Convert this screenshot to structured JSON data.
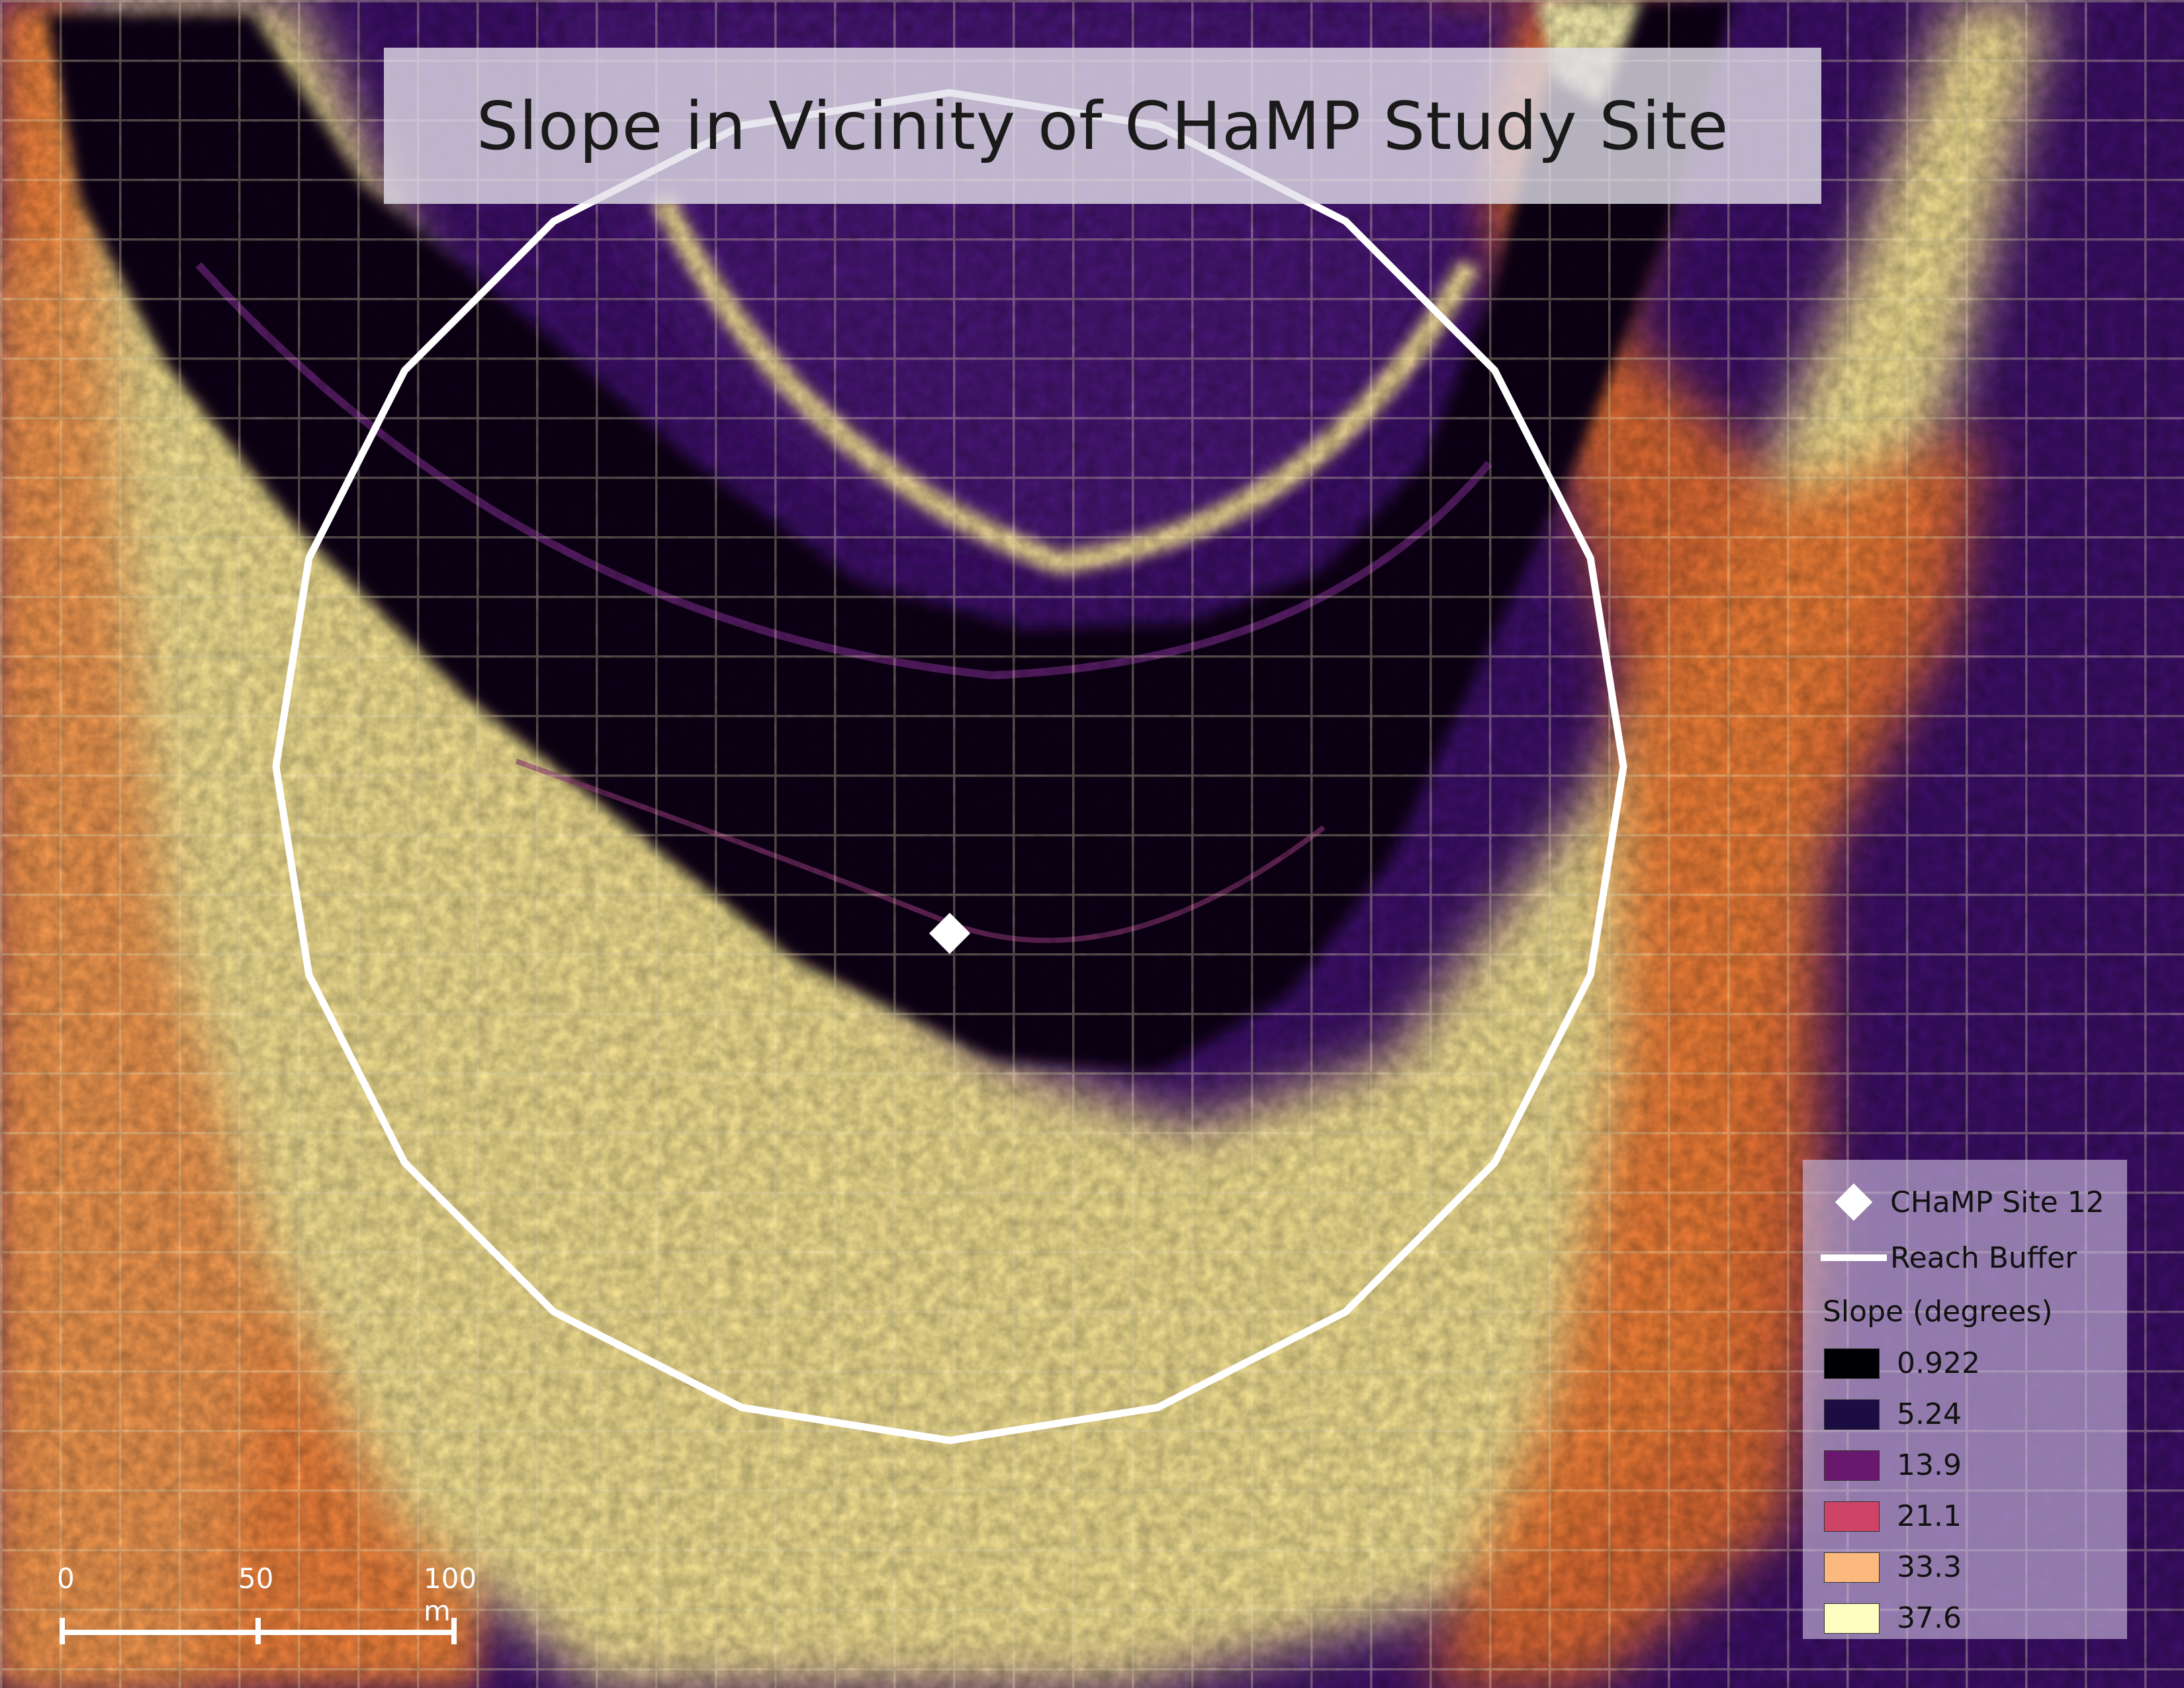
{
  "title": "Slope in Vicinity of CHaMP Study Site",
  "legend": {
    "site_label": "CHaMP Site 12",
    "buffer_label": "Reach Buffer",
    "slope_title": "Slope (degrees)",
    "classes": [
      {
        "value": "0.922",
        "color": "#000004"
      },
      {
        "value": "5.24",
        "color": "#1b0c41"
      },
      {
        "value": "13.9",
        "color": "#6a176e"
      },
      {
        "value": "21.1",
        "color": "#cf4466"
      },
      {
        "value": "33.3",
        "color": "#fcb97d"
      },
      {
        "value": "37.6",
        "color": "#fcfdbf"
      }
    ]
  },
  "scalebar": {
    "labels": [
      "0",
      "50",
      "100 m"
    ]
  },
  "colors": {
    "plateau": "#3e0f6b",
    "slope_high": "#fcf3a8",
    "slope_mid": "#f57d3d",
    "channel": "#070312",
    "buffer": "#ffffff"
  }
}
